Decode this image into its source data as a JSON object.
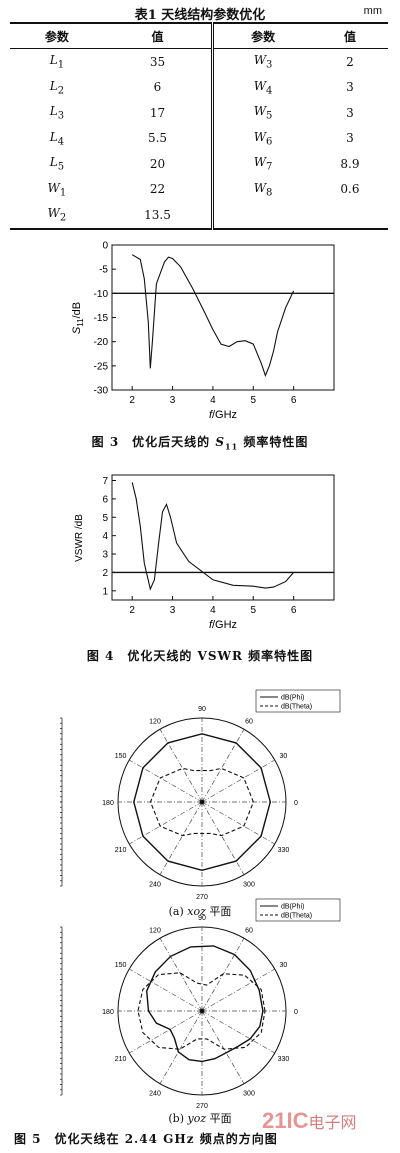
{
  "table": {
    "title": "表1 天线结构参数优化",
    "unit": "mm",
    "headers": [
      "参数",
      "值",
      "参数",
      "值"
    ],
    "rows": [
      [
        {
          "s": "L",
          "sub": "1"
        },
        "35",
        {
          "s": "W",
          "sub": "3"
        },
        "2"
      ],
      [
        {
          "s": "L",
          "sub": "2"
        },
        "6",
        {
          "s": "W",
          "sub": "4"
        },
        "3"
      ],
      [
        {
          "s": "L",
          "sub": "3"
        },
        "17",
        {
          "s": "W",
          "sub": "5"
        },
        "3"
      ],
      [
        {
          "s": "L",
          "sub": "4"
        },
        "5.5",
        {
          "s": "W",
          "sub": "6"
        },
        "3"
      ],
      [
        {
          "s": "L",
          "sub": "5"
        },
        "20",
        {
          "s": "W",
          "sub": "7"
        },
        "8.9"
      ],
      [
        {
          "s": "W",
          "sub": "1"
        },
        "22",
        {
          "s": "W",
          "sub": "8"
        },
        "0.6"
      ],
      [
        {
          "s": "W",
          "sub": "2"
        },
        "13.5",
        null,
        null
      ]
    ]
  },
  "captions": {
    "fig3_prefix": "图 3　优化后天线的 ",
    "fig3_s": "S",
    "fig3_sub": "11",
    "fig3_suffix": " 频率特性图",
    "fig4": "图 4　优化天线的 VSWR 频率特性图",
    "fig5": "图 5　优化天线在 2.44 GHz 频点的方向图",
    "sub_a_prefix": "(a) ",
    "sub_a_plane": "xoz",
    "sub_a_suffix": " 平面",
    "sub_b_prefix": "(b) ",
    "sub_b_plane": "yoz",
    "sub_b_suffix": " 平面"
  },
  "watermark": {
    "brand": "21IC",
    "text": "电子网"
  },
  "colors": {
    "ink": "#111111",
    "watermark": "#e07a7a"
  },
  "chart_data": [
    {
      "type": "line",
      "name": "fig3",
      "xlabel_var": "f",
      "xlabel_unit": "/GHz",
      "ylabel_var": "S",
      "ylabel_sub": "11",
      "ylabel_unit": "/dB",
      "xlim": [
        1.5,
        7
      ],
      "ylim": [
        -30,
        0
      ],
      "xticks": [
        2,
        3,
        4,
        5,
        6
      ],
      "yticks": [
        0,
        -5,
        -10,
        -15,
        -20,
        -25,
        -30
      ],
      "reference_line": -10,
      "series": [
        {
          "x": [
            2.0,
            2.2,
            2.3,
            2.4,
            2.45,
            2.5,
            2.6,
            2.8,
            2.9,
            3.0,
            3.2,
            3.5,
            3.8,
            4.0,
            4.2,
            4.4,
            4.6,
            4.8,
            5.0,
            5.2,
            5.3,
            5.4,
            5.5,
            5.6,
            5.8,
            6.0
          ],
          "y": [
            -2,
            -3,
            -7,
            -16,
            -25.5,
            -20,
            -8,
            -3.5,
            -2.5,
            -2.8,
            -4.5,
            -9,
            -14,
            -17.5,
            -20.5,
            -21,
            -20,
            -19.8,
            -20.5,
            -24.5,
            -27,
            -25,
            -22,
            -18,
            -13,
            -9.5
          ]
        }
      ]
    },
    {
      "type": "line",
      "name": "fig4",
      "xlabel_var": "f",
      "xlabel_unit": "/GHz",
      "ylabel": "VSWR /dB",
      "xlim": [
        1.5,
        7
      ],
      "ylim": [
        0.5,
        7.3
      ],
      "xticks": [
        2,
        3,
        4,
        5,
        6
      ],
      "yticks": [
        1,
        2,
        3,
        4,
        5,
        6,
        7
      ],
      "reference_line": 2,
      "series": [
        {
          "x": [
            2.0,
            2.1,
            2.2,
            2.3,
            2.45,
            2.55,
            2.65,
            2.75,
            2.85,
            2.95,
            3.1,
            3.4,
            3.7,
            4.0,
            4.5,
            5.0,
            5.3,
            5.5,
            5.8,
            6.0
          ],
          "y": [
            6.9,
            6.0,
            4.5,
            2.5,
            1.1,
            1.6,
            3.5,
            5.3,
            5.7,
            5.0,
            3.6,
            2.6,
            2.1,
            1.6,
            1.3,
            1.25,
            1.15,
            1.2,
            1.5,
            2.0
          ]
        }
      ]
    },
    {
      "type": "polar",
      "name": "fig5a",
      "radial_ticks": [
        5,
        0,
        -5,
        -10,
        -15,
        -20,
        -25,
        -30,
        -35,
        -40,
        -45,
        -50,
        -55,
        -60,
        -65,
        -70,
        -75
      ],
      "radial_range": [
        -75,
        5
      ],
      "angle_ticks": [
        0,
        30,
        60,
        90,
        120,
        150,
        180,
        210,
        240,
        270,
        300,
        330
      ],
      "legend": [
        "dB(Phi)",
        "dB(Theta)"
      ],
      "series": [
        {
          "name": "dB(Phi)",
          "style": "solid",
          "angle": [
            0,
            30,
            60,
            90,
            120,
            150,
            180,
            210,
            240,
            270,
            300,
            330,
            360
          ],
          "r": [
            -10,
            -10,
            -10,
            -10,
            -10,
            -10,
            -10,
            -10,
            -10,
            -10,
            -10,
            -10,
            -10
          ]
        },
        {
          "name": "dB(Theta)",
          "style": "dashed",
          "angle": [
            0,
            30,
            60,
            75,
            90,
            105,
            120,
            150,
            180,
            210,
            240,
            255,
            270,
            285,
            300,
            330,
            360
          ],
          "r": [
            -26,
            -29,
            -38,
            -44,
            -45,
            -44,
            -38,
            -29,
            -26,
            -29,
            -38,
            -44,
            -45,
            -44,
            -38,
            -29,
            -26
          ]
        }
      ]
    },
    {
      "type": "polar",
      "name": "fig5b",
      "radial_ticks": [
        5,
        0,
        -5,
        -10,
        -15,
        -20,
        -25,
        -30,
        -35,
        -40,
        -45,
        -50,
        -55,
        -60,
        -65,
        -70,
        -75
      ],
      "radial_range": [
        -75,
        5
      ],
      "angle_ticks": [
        0,
        30,
        60,
        90,
        120,
        150,
        180,
        210,
        240,
        270,
        300,
        330
      ],
      "legend": [
        "dB(Phi)",
        "dB(Theta)"
      ],
      "series": [
        {
          "name": "dB(Phi)",
          "style": "solid",
          "angle": [
            0,
            20,
            40,
            60,
            80,
            100,
            120,
            140,
            160,
            180,
            195,
            210,
            225,
            240,
            255,
            270,
            285,
            300,
            315,
            330,
            345,
            360
          ],
          "r": [
            -17,
            -17,
            -15,
            -13,
            -12,
            -13,
            -15,
            -17,
            -19,
            -24,
            -30,
            -40,
            -38,
            -30,
            -27,
            -27,
            -28,
            -29,
            -27,
            -22,
            -18,
            -17
          ]
        },
        {
          "name": "dB(Theta)",
          "style": "dashed",
          "angle": [
            0,
            20,
            40,
            60,
            80,
            100,
            120,
            140,
            160,
            180,
            200,
            220,
            240,
            260,
            280,
            300,
            320,
            340,
            360
          ],
          "r": [
            -15,
            -15,
            -22,
            -34,
            -50,
            -48,
            -33,
            -21,
            -15,
            -14,
            -15,
            -21,
            -33,
            -48,
            -48,
            -33,
            -21,
            -15,
            -15
          ]
        }
      ]
    }
  ]
}
